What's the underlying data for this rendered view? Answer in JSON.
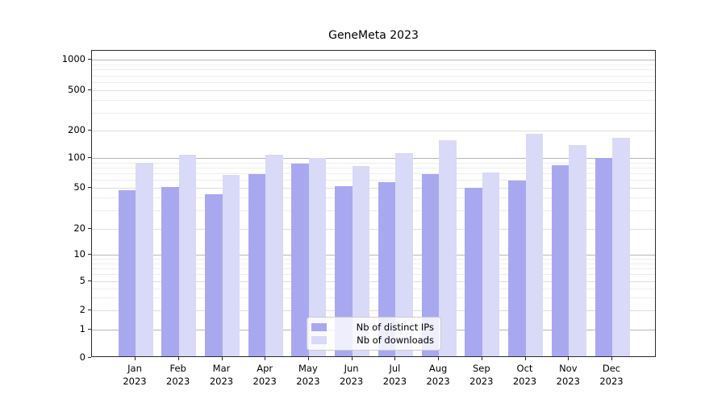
{
  "title": "GeneMeta 2023",
  "chart_data": {
    "type": "bar",
    "title": "GeneMeta 2023",
    "categories": [
      "Jan",
      "Feb",
      "Mar",
      "Apr",
      "May",
      "Jun",
      "Jul",
      "Aug",
      "Sep",
      "Oct",
      "Nov",
      "Dec"
    ],
    "year_label": "2023",
    "series": [
      {
        "name": "Nb of distinct IPs",
        "color": "#a8a8f1",
        "values": [
          47,
          51,
          43,
          69,
          87,
          52,
          57,
          69,
          50,
          59,
          85,
          101
        ]
      },
      {
        "name": "Nb of downloads",
        "color": "#d9d9f8",
        "values": [
          89,
          109,
          68,
          108,
          101,
          83,
          114,
          157,
          72,
          186,
          138,
          168
        ]
      }
    ],
    "yscale": "symlog",
    "ylim": [
      0,
      1200
    ],
    "yticks": [
      0,
      1,
      2,
      5,
      10,
      20,
      50,
      100,
      200,
      500,
      1000
    ],
    "grid": true,
    "legend_position": "lower center"
  }
}
